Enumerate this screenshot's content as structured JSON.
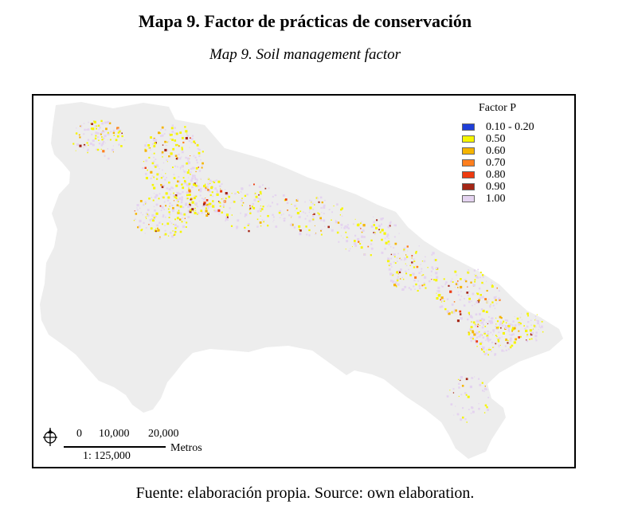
{
  "header": {
    "title": "Mapa 9. Factor de prácticas de conservación",
    "subtitle": "Map 9. Soil management factor"
  },
  "legend": {
    "title": "Factor P",
    "items": [
      {
        "label": "0.10 - 0.20",
        "color": "#1f3fd8"
      },
      {
        "label": "0.50",
        "color": "#f5f500"
      },
      {
        "label": "0.60",
        "color": "#f5b400"
      },
      {
        "label": "0.70",
        "color": "#ff7f1e"
      },
      {
        "label": "0.80",
        "color": "#ee3b10"
      },
      {
        "label": "0.90",
        "color": "#a42616"
      },
      {
        "label": "1.00",
        "color": "#e4d3f0"
      }
    ]
  },
  "map": {
    "base_color": "#ededed"
  },
  "scalebar": {
    "ticks": [
      "0",
      "10,000",
      "20,000"
    ],
    "unit": "Metros",
    "ratio": "1: 125,000",
    "icon": "north-arrow-icon"
  },
  "footer": {
    "source": "Fuente: elaboración propia. Source: own elaboration."
  }
}
